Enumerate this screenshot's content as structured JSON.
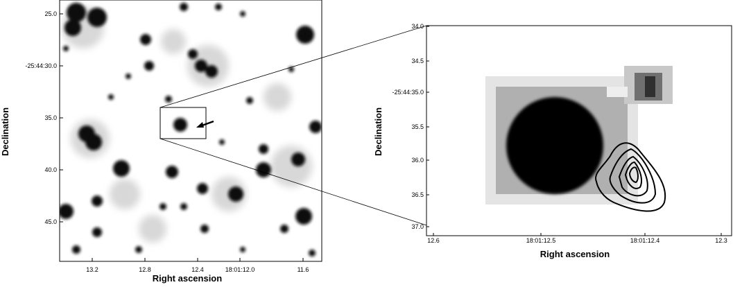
{
  "panels": [
    {
      "x_label": "Right ascension",
      "y_label": "Declination",
      "x_ticks": [
        "13.2",
        "12.8",
        "12.4",
        "18:01:12.0",
        "11.6"
      ],
      "y_ticks": [
        "25.0",
        "-25:44:30.0",
        "35.0",
        "40.0",
        "45.0"
      ]
    },
    {
      "x_label": "Right ascension",
      "y_label": "Declination",
      "x_ticks": [
        "12.6",
        "18:01:12.5",
        "18:01:12.4",
        "12.3"
      ],
      "y_ticks": [
        "34.0",
        "34.5",
        "-25:44:35.0",
        "35.5",
        "36.0",
        "36.5",
        "37.0"
      ]
    }
  ]
}
